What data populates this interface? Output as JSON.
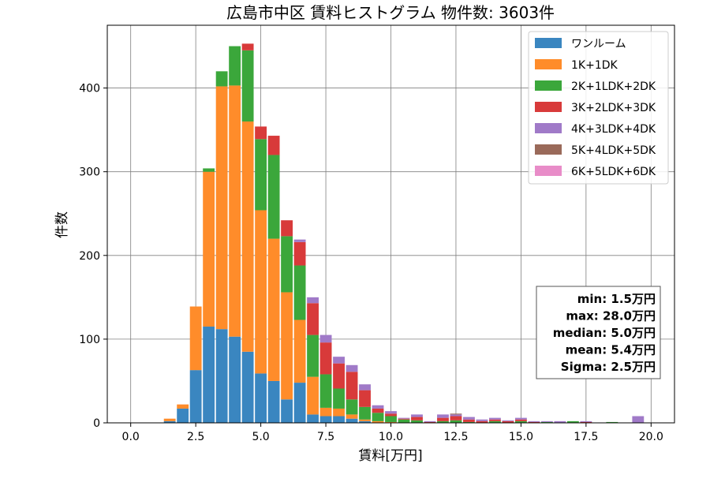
{
  "chart_data": {
    "type": "bar",
    "stacked": true,
    "title": "広島市中区 賃料ヒストグラム 物件数: 3603件",
    "xlabel": "賃料[万円]",
    "ylabel": "件数",
    "xlim": [
      -0.9,
      20.9
    ],
    "ylim": [
      0,
      475
    ],
    "xticks": [
      0,
      2.5,
      5,
      7.5,
      10,
      12.5,
      15,
      17.5,
      20
    ],
    "xtick_labels": [
      "0.0",
      "2.5",
      "5.0",
      "7.5",
      "10.0",
      "12.5",
      "15.0",
      "17.5",
      "20.0"
    ],
    "yticks": [
      0,
      100,
      200,
      300,
      400
    ],
    "ytick_labels": [
      "0",
      "100",
      "200",
      "300",
      "400"
    ],
    "grid": true,
    "legend_position": "top-right",
    "bin_width": 0.5,
    "x": [
      0.0,
      0.5,
      1.0,
      1.5,
      2.0,
      2.5,
      3.0,
      3.5,
      4.0,
      4.5,
      5.0,
      5.5,
      6.0,
      6.5,
      7.0,
      7.5,
      8.0,
      8.5,
      9.0,
      9.5,
      10.0,
      10.5,
      11.0,
      11.5,
      12.0,
      12.5,
      13.0,
      13.5,
      14.0,
      14.5,
      15.0,
      15.5,
      16.0,
      16.5,
      17.0,
      17.5,
      18.0,
      18.5,
      19.0,
      19.5
    ],
    "series": [
      {
        "name": "ワンルーム",
        "color": "#3a86c0",
        "values": [
          0,
          0,
          0,
          2,
          17,
          63,
          115,
          112,
          103,
          85,
          59,
          50,
          28,
          48,
          10,
          8,
          8,
          5,
          2,
          0,
          0,
          0,
          0,
          0,
          0,
          0,
          0,
          0,
          0,
          0,
          0,
          0,
          0,
          0,
          0,
          0,
          0,
          0,
          0,
          0
        ]
      },
      {
        "name": "1K+1DK",
        "color": "#ff8c2a",
        "values": [
          0,
          0,
          0,
          3,
          5,
          76,
          185,
          290,
          300,
          275,
          195,
          170,
          128,
          75,
          45,
          10,
          9,
          5,
          2,
          2,
          1,
          0,
          0,
          0,
          0,
          0,
          0,
          0,
          0,
          0,
          0,
          0,
          0,
          0,
          0,
          0,
          0,
          0,
          0,
          0
        ]
      },
      {
        "name": "2K+1LDK+2DK",
        "color": "#3ba73b",
        "values": [
          0,
          0,
          0,
          0,
          0,
          0,
          4,
          18,
          47,
          85,
          85,
          100,
          67,
          65,
          50,
          40,
          24,
          18,
          15,
          10,
          7,
          4,
          3,
          0,
          2,
          3,
          1,
          0,
          2,
          0,
          2,
          0,
          1,
          0,
          2,
          0,
          0,
          1,
          0,
          0
        ]
      },
      {
        "name": "3K+2LDK+3DK",
        "color": "#d83a3a",
        "values": [
          0,
          0,
          0,
          0,
          0,
          0,
          0,
          0,
          0,
          8,
          15,
          23,
          19,
          28,
          38,
          38,
          30,
          33,
          20,
          5,
          3,
          1,
          4,
          1,
          4,
          5,
          3,
          2,
          2,
          2,
          2,
          1,
          0,
          0,
          0,
          1,
          0,
          0,
          0,
          0
        ]
      },
      {
        "name": "4K+3LDK+4DK",
        "color": "#a07ac8",
        "values": [
          0,
          0,
          0,
          0,
          0,
          0,
          0,
          0,
          0,
          0,
          0,
          0,
          0,
          3,
          7,
          9,
          8,
          8,
          7,
          4,
          3,
          1,
          3,
          1,
          4,
          2,
          3,
          2,
          2,
          1,
          2,
          1,
          1,
          2,
          0,
          1,
          0,
          0,
          0,
          8
        ]
      },
      {
        "name": "5K+4LDK+5DK",
        "color": "#9a6a5a",
        "values": [
          0,
          0,
          0,
          0,
          0,
          0,
          0,
          0,
          0,
          0,
          0,
          0,
          0,
          0,
          0,
          0,
          0,
          0,
          0,
          0,
          0,
          0,
          0,
          0,
          0,
          1,
          0,
          0,
          0,
          0,
          0,
          0,
          0,
          0,
          0,
          0,
          0,
          0,
          0,
          0
        ]
      },
      {
        "name": "6K+5LDK+6DK",
        "color": "#e88cc8",
        "values": [
          0,
          0,
          0,
          0,
          0,
          0,
          0,
          0,
          0,
          0,
          0,
          0,
          0,
          0,
          0,
          0,
          0,
          0,
          0,
          0,
          0,
          0,
          0,
          0,
          0,
          0,
          0,
          0,
          0,
          0,
          0,
          0,
          0,
          0,
          0,
          0,
          0,
          0,
          0,
          0
        ]
      }
    ],
    "stats": [
      "min: 1.5万円",
      "max: 28.0万円",
      "median: 5.0万円",
      "mean: 5.4万円",
      "Sigma: 2.5万円"
    ]
  }
}
